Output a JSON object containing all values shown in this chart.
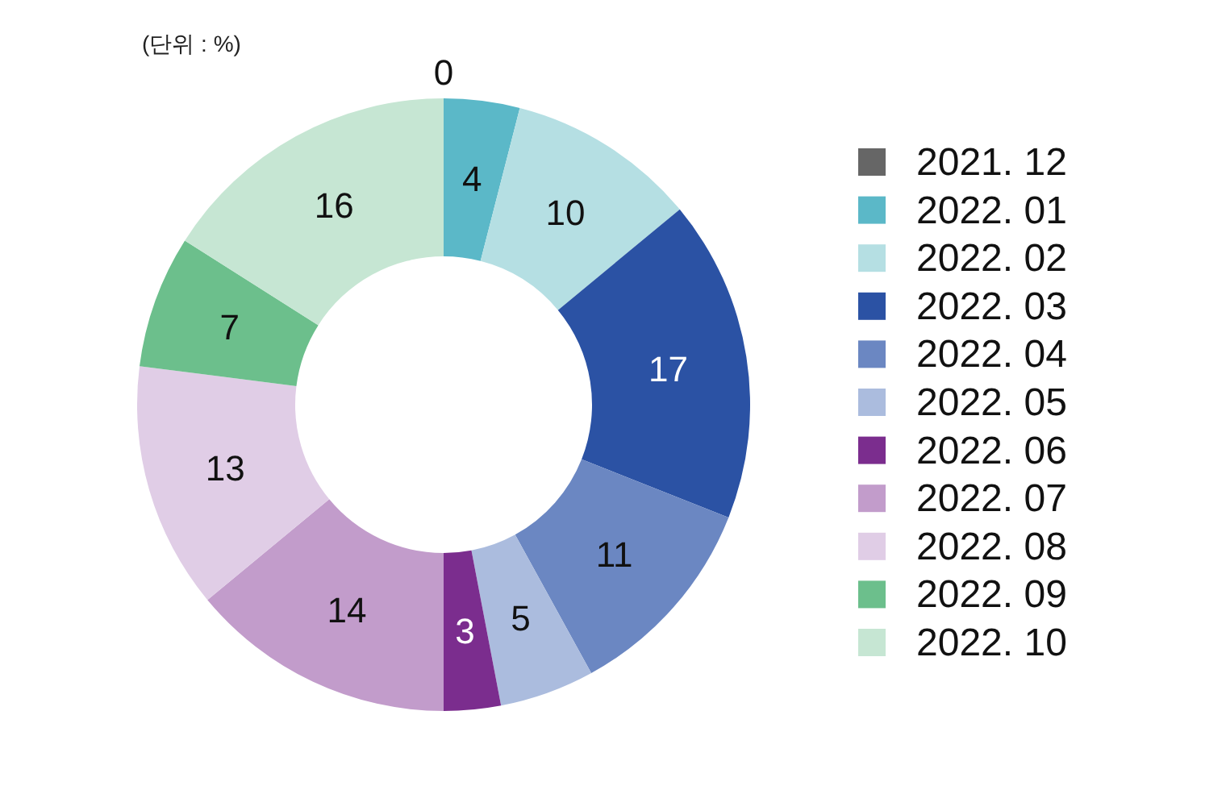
{
  "chart_data": {
    "type": "donut",
    "annotations": [
      "(단위 : %)"
    ],
    "categories": [
      "2021. 12",
      "2022. 01",
      "2022. 02",
      "2022. 03",
      "2022. 04",
      "2022. 05",
      "2022. 06",
      "2022. 07",
      "2022. 08",
      "2022. 09",
      "2022. 10"
    ],
    "values": [
      0,
      4,
      10,
      17,
      11,
      5,
      3,
      14,
      13,
      7,
      16
    ],
    "colors": [
      "#666666",
      "#5bb8c8",
      "#b5dfe3",
      "#2b52a4",
      "#6b87c2",
      "#abbcde",
      "#7b2d8e",
      "#c29ccb",
      "#e0cde6",
      "#6cbf8c",
      "#c6e6d3"
    ],
    "value_labels": [
      "0",
      "4",
      "10",
      "17",
      "11",
      "5",
      "3",
      "14",
      "13",
      "7",
      "16"
    ],
    "legend": "right"
  }
}
